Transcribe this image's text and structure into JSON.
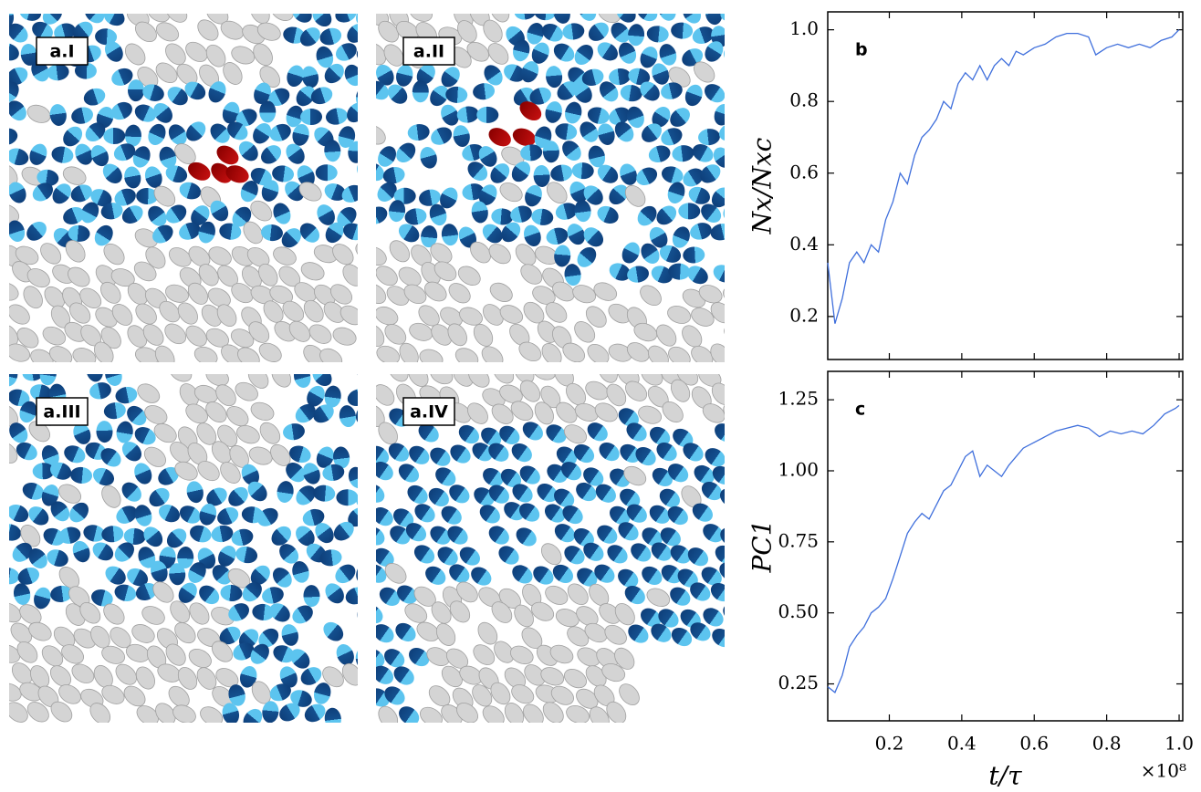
{
  "panels": [
    {
      "label": "a.I"
    },
    {
      "label": "a.II"
    },
    {
      "label": "a.III"
    },
    {
      "label": "a.IV"
    }
  ],
  "chart_data": [
    {
      "type": "line",
      "label": "b",
      "ylabel": "Nx/Nxc",
      "color": "#3f6fdc",
      "x": [
        0.03,
        0.05,
        0.07,
        0.09,
        0.11,
        0.13,
        0.15,
        0.17,
        0.19,
        0.21,
        0.23,
        0.25,
        0.27,
        0.29,
        0.31,
        0.33,
        0.35,
        0.37,
        0.39,
        0.41,
        0.43,
        0.45,
        0.47,
        0.49,
        0.51,
        0.53,
        0.55,
        0.57,
        0.6,
        0.63,
        0.66,
        0.69,
        0.72,
        0.75,
        0.77,
        0.8,
        0.83,
        0.86,
        0.89,
        0.92,
        0.95,
        0.98,
        1.0
      ],
      "values": [
        0.35,
        0.18,
        0.25,
        0.35,
        0.38,
        0.35,
        0.4,
        0.38,
        0.47,
        0.52,
        0.6,
        0.57,
        0.65,
        0.7,
        0.72,
        0.75,
        0.8,
        0.78,
        0.85,
        0.88,
        0.86,
        0.9,
        0.86,
        0.9,
        0.92,
        0.9,
        0.94,
        0.93,
        0.95,
        0.96,
        0.98,
        0.99,
        0.99,
        0.98,
        0.93,
        0.95,
        0.96,
        0.95,
        0.96,
        0.95,
        0.97,
        0.98,
        1.0
      ],
      "xlim": [
        0.03,
        1.01
      ],
      "ylim": [
        0.08,
        1.05
      ],
      "yticks": [
        0.2,
        0.4,
        0.6,
        0.8,
        {
          "value": 1,
          "label": "1.0"
        }
      ]
    },
    {
      "type": "line",
      "label": "c",
      "ylabel": "PC1",
      "xlabel": "t/τ",
      "x_multiplier": "×10⁸",
      "color": "#3f6fdc",
      "x": [
        0.03,
        0.05,
        0.07,
        0.09,
        0.11,
        0.13,
        0.15,
        0.17,
        0.19,
        0.21,
        0.23,
        0.25,
        0.27,
        0.29,
        0.31,
        0.33,
        0.35,
        0.37,
        0.39,
        0.41,
        0.43,
        0.45,
        0.47,
        0.49,
        0.51,
        0.53,
        0.55,
        0.57,
        0.6,
        0.63,
        0.66,
        0.69,
        0.72,
        0.75,
        0.78,
        0.81,
        0.84,
        0.87,
        0.9,
        0.93,
        0.96,
        0.99,
        1.0
      ],
      "values": [
        0.24,
        0.22,
        0.28,
        0.38,
        0.42,
        0.45,
        0.5,
        0.52,
        0.55,
        0.62,
        0.7,
        0.78,
        0.82,
        0.85,
        0.83,
        0.88,
        0.93,
        0.95,
        1.0,
        1.05,
        1.07,
        0.98,
        1.02,
        1.0,
        0.98,
        1.02,
        1.05,
        1.08,
        1.1,
        1.12,
        1.14,
        1.15,
        1.16,
        1.15,
        1.12,
        1.14,
        1.13,
        1.14,
        1.13,
        1.16,
        1.2,
        1.22,
        1.23
      ],
      "xlim": [
        0.03,
        1.01
      ],
      "ylim": [
        0.12,
        1.35
      ],
      "xticks": [
        0.2,
        0.4,
        0.6,
        0.8,
        {
          "value": 1,
          "label": "1.0"
        }
      ],
      "yticks": [
        0.25,
        {
          "value": 0.5,
          "label": "0.50"
        },
        0.75,
        {
          "value": 1,
          "label": "1.00"
        },
        1.25
      ]
    }
  ]
}
